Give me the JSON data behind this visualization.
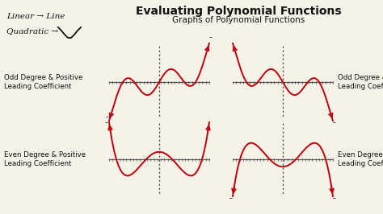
{
  "title": "Evaluating Polynomial Functions",
  "subtitle": "Graphs of Polynomial Functions",
  "background_color": "#f5f2e8",
  "curve_color": "#c0000a",
  "axis_color": "#555555",
  "text_color": "#111111",
  "label_left_1": "Odd Degree & Positive\nLeading Coefficient",
  "label_right_1": "Odd Degree & Negative\nLeading Coefficient",
  "label_left_2": "Even Degree & Positive\nLeading Coefficient",
  "label_right_2": "Even Degree & Negative\nLeading Coefficient",
  "note_1": "Linear → Line",
  "note_2": "Quadratic →",
  "axis_lw": 0.9,
  "curve_lw": 1.4
}
